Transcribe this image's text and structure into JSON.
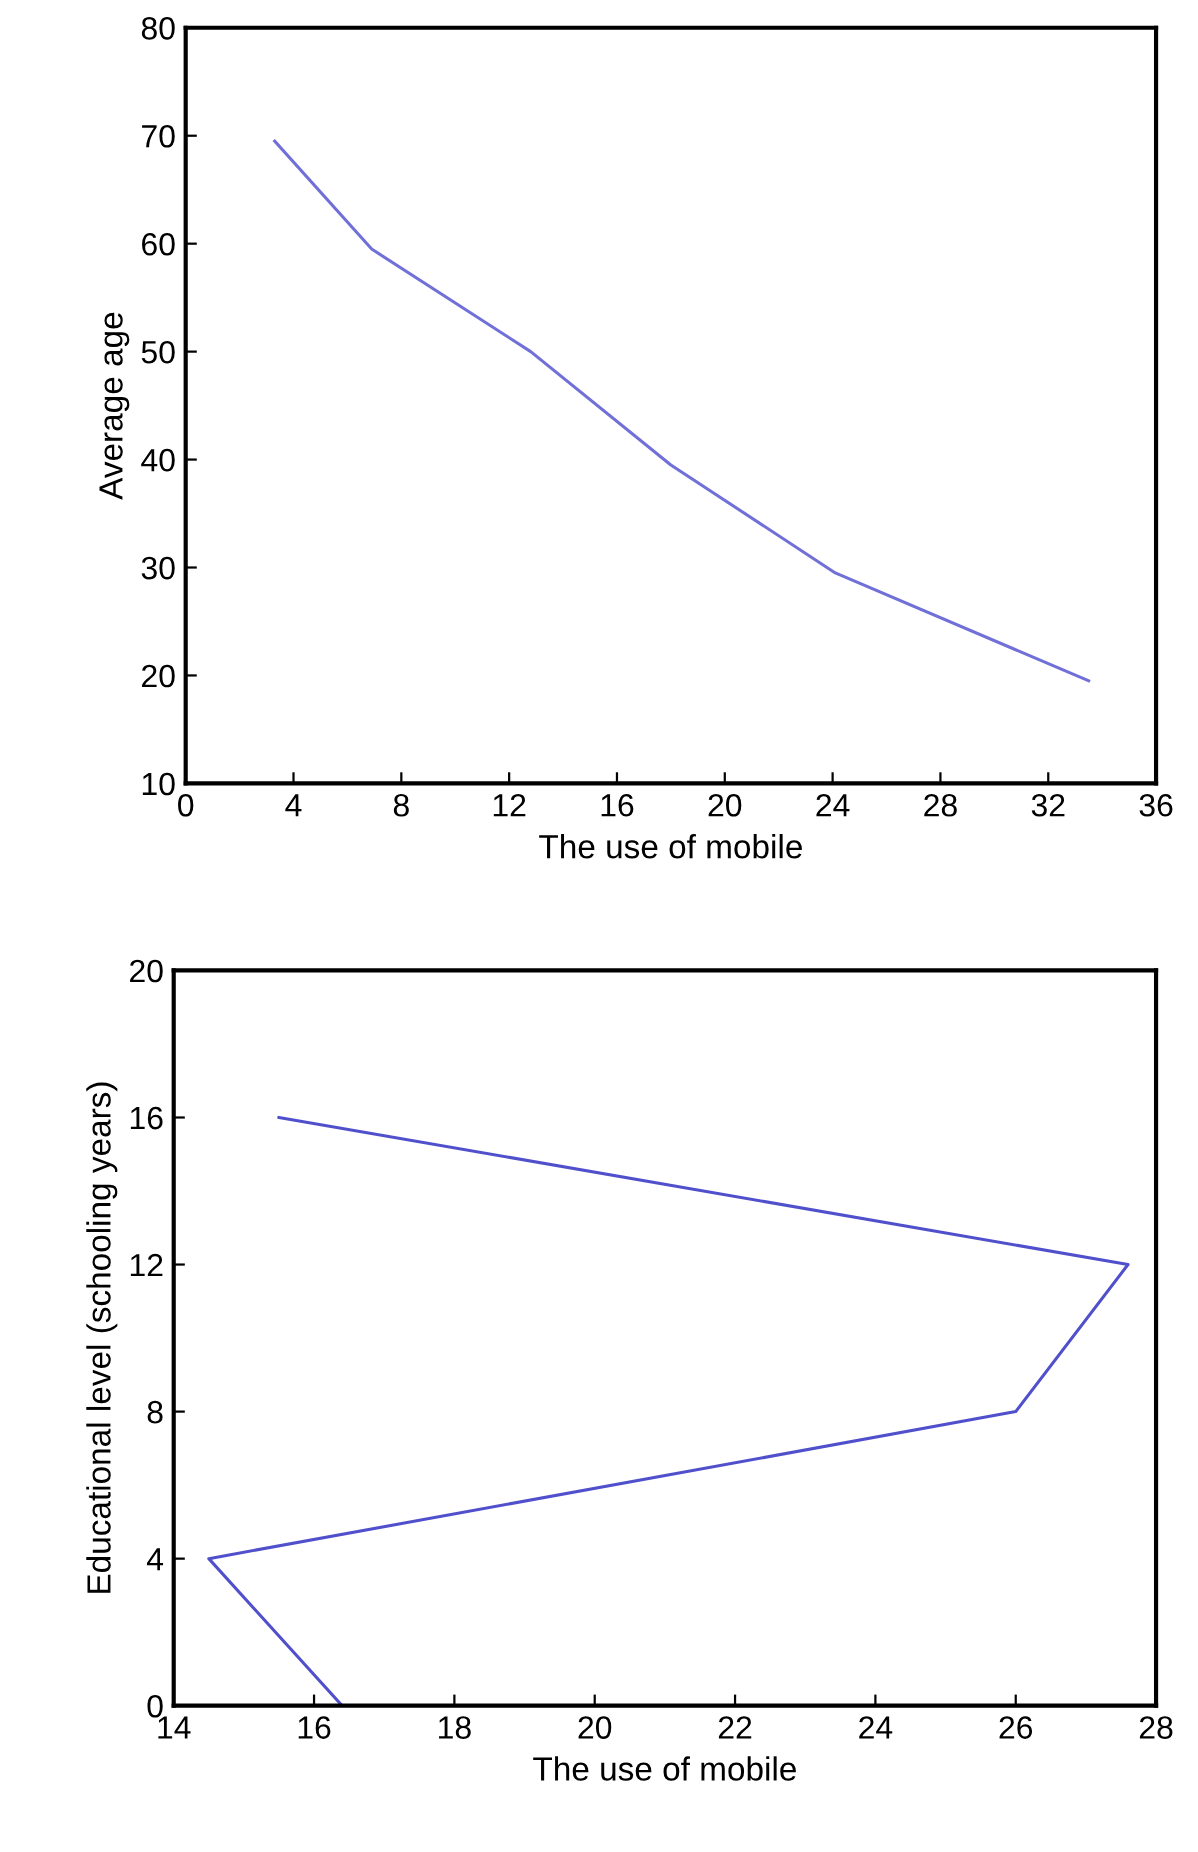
{
  "chart_data": [
    {
      "type": "line",
      "xlabel": "The use of mobile",
      "ylabel": "Average age",
      "x": [
        3.3,
        6.9,
        12.8,
        18,
        24.1,
        33.5
      ],
      "series": [
        {
          "color": "#7070d8",
          "values": [
            69.5,
            59.5,
            50,
            39.5,
            29.5,
            19.5
          ]
        }
      ],
      "xlim": [
        0,
        36
      ],
      "xticks": [
        0,
        4,
        8,
        12,
        16,
        20,
        24,
        28,
        32,
        36
      ],
      "ylim": [
        10,
        80
      ],
      "yticks": [
        10,
        20,
        30,
        40,
        50,
        60,
        70,
        80
      ],
      "grid": false,
      "legend": false
    },
    {
      "type": "line",
      "xlabel": "The use of mobile",
      "ylabel": "Educational level (schooling years)",
      "x": [
        16.4,
        14.5,
        26,
        27.6,
        15.5
      ],
      "series": [
        {
          "color": "#5050cc",
          "values": [
            0,
            4,
            8,
            12,
            16
          ]
        }
      ],
      "xlim": [
        14,
        28
      ],
      "xticks": [
        14,
        16,
        18,
        20,
        22,
        24,
        26,
        28
      ],
      "ylim": [
        0,
        20
      ],
      "yticks": [
        0,
        4,
        8,
        12,
        16,
        20
      ],
      "grid": false,
      "legend": false
    }
  ]
}
